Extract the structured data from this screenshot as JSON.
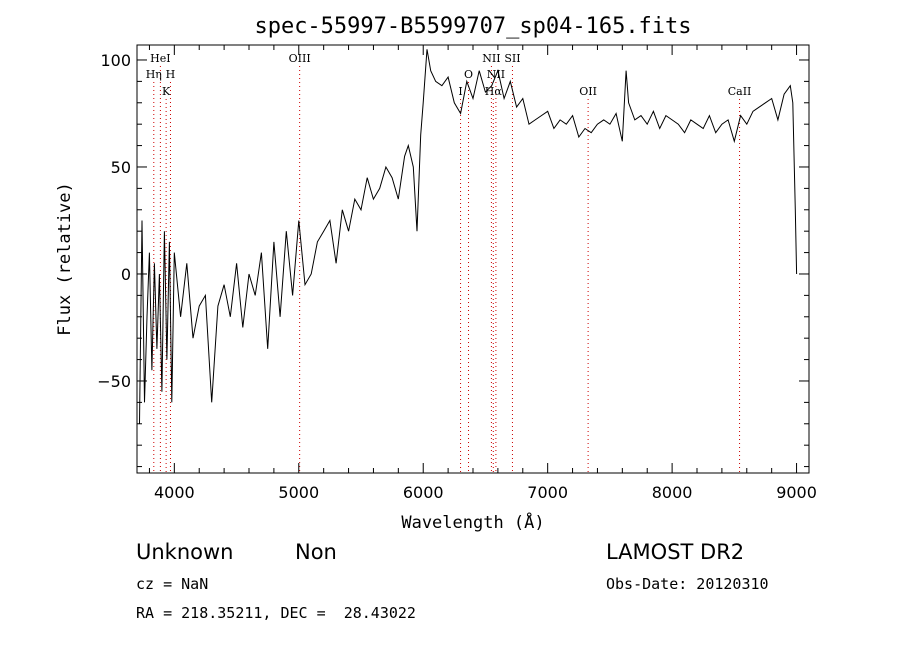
{
  "chart_data": {
    "type": "line",
    "title": "spec-55997-B5599707_sp04-165.fits",
    "xlabel": "Wavelength (Å)",
    "ylabel": "Flux (relative)",
    "xlim": [
      3700,
      9100
    ],
    "ylim": [
      -93,
      107
    ],
    "xticks": [
      4000,
      5000,
      6000,
      7000,
      8000,
      9000
    ],
    "yticks": [
      -50,
      0,
      50,
      100
    ],
    "grid": false,
    "line_color": "#000000",
    "marker_color": "#cc0000",
    "series": [
      {
        "values_note": "",
        "x": [
          3720,
          3740,
          3760,
          3780,
          3800,
          3820,
          3840,
          3860,
          3880,
          3900,
          3920,
          3940,
          3960,
          3980,
          4000,
          4050,
          4100,
          4150,
          4200,
          4250,
          4300,
          4350,
          4400,
          4450,
          4500,
          4550,
          4600,
          4650,
          4700,
          4750,
          4800,
          4850,
          4900,
          4950,
          5000,
          5050,
          5100,
          5150,
          5200,
          5250,
          5300,
          5350,
          5400,
          5450,
          5500,
          5550,
          5600,
          5650,
          5700,
          5750,
          5800,
          5850,
          5880,
          5900,
          5920,
          5950,
          5980,
          6000,
          6030,
          6060,
          6100,
          6150,
          6200,
          6250,
          6300,
          6350,
          6400,
          6450,
          6500,
          6550,
          6600,
          6650,
          6700,
          6750,
          6800,
          6850,
          6900,
          6950,
          7000,
          7050,
          7100,
          7150,
          7200,
          7250,
          7300,
          7350,
          7400,
          7450,
          7500,
          7550,
          7600,
          7630,
          7650,
          7700,
          7750,
          7800,
          7850,
          7900,
          7950,
          8000,
          8050,
          8100,
          8150,
          8200,
          8250,
          8300,
          8350,
          8400,
          8450,
          8500,
          8550,
          8600,
          8650,
          8700,
          8750,
          8800,
          8850,
          8900,
          8950,
          8970,
          8990,
          9000
        ],
        "y": [
          -70,
          25,
          -60,
          -20,
          10,
          -45,
          5,
          -35,
          0,
          -55,
          20,
          -40,
          15,
          -60,
          10,
          -20,
          5,
          -30,
          -15,
          -10,
          -60,
          -15,
          -5,
          -20,
          5,
          -25,
          0,
          -10,
          10,
          -35,
          15,
          -20,
          20,
          -10,
          25,
          -5,
          0,
          15,
          20,
          25,
          5,
          30,
          20,
          35,
          30,
          45,
          35,
          40,
          50,
          45,
          35,
          55,
          60,
          55,
          50,
          20,
          65,
          80,
          105,
          95,
          90,
          88,
          92,
          80,
          75,
          90,
          82,
          95,
          85,
          88,
          95,
          82,
          90,
          78,
          82,
          70,
          72,
          74,
          76,
          68,
          72,
          70,
          74,
          64,
          68,
          66,
          70,
          72,
          70,
          75,
          62,
          95,
          80,
          72,
          74,
          70,
          76,
          68,
          74,
          72,
          70,
          66,
          72,
          70,
          68,
          74,
          66,
          70,
          72,
          62,
          74,
          70,
          76,
          78,
          80,
          82,
          72,
          84,
          88,
          80,
          30,
          0
        ]
      }
    ],
    "emission_lines": [
      {
        "label": "HeI",
        "x": 3888,
        "row": 0
      },
      {
        "label": "Hη",
        "x": 3835,
        "row": 1
      },
      {
        "label": "H",
        "x": 3969,
        "row": 1
      },
      {
        "label": "K",
        "x": 3934,
        "row": 2
      },
      {
        "label": "OIII",
        "x": 5007,
        "row": 0
      },
      {
        "label": "O",
        "x": 6364,
        "row": 1
      },
      {
        "label": "I",
        "x": 6300,
        "row": 2
      },
      {
        "label": "NII",
        "x": 6548,
        "row": 0
      },
      {
        "label": "SII",
        "x": 6717,
        "row": 0
      },
      {
        "label": "NII",
        "x": 6584,
        "row": 1
      },
      {
        "label": "Hα",
        "x": 6563,
        "row": 2
      },
      {
        "label": "OII",
        "x": 7325,
        "row": 2
      },
      {
        "label": "CaII",
        "x": 8542,
        "row": 2
      }
    ]
  },
  "info": {
    "classification": "Unknown",
    "subclass": "Non",
    "survey": "LAMOST DR2",
    "cz": "cz = NaN",
    "obs_date": "Obs-Date: 20120310",
    "coords": "RA = 218.35211, DEC =  28.43022"
  }
}
